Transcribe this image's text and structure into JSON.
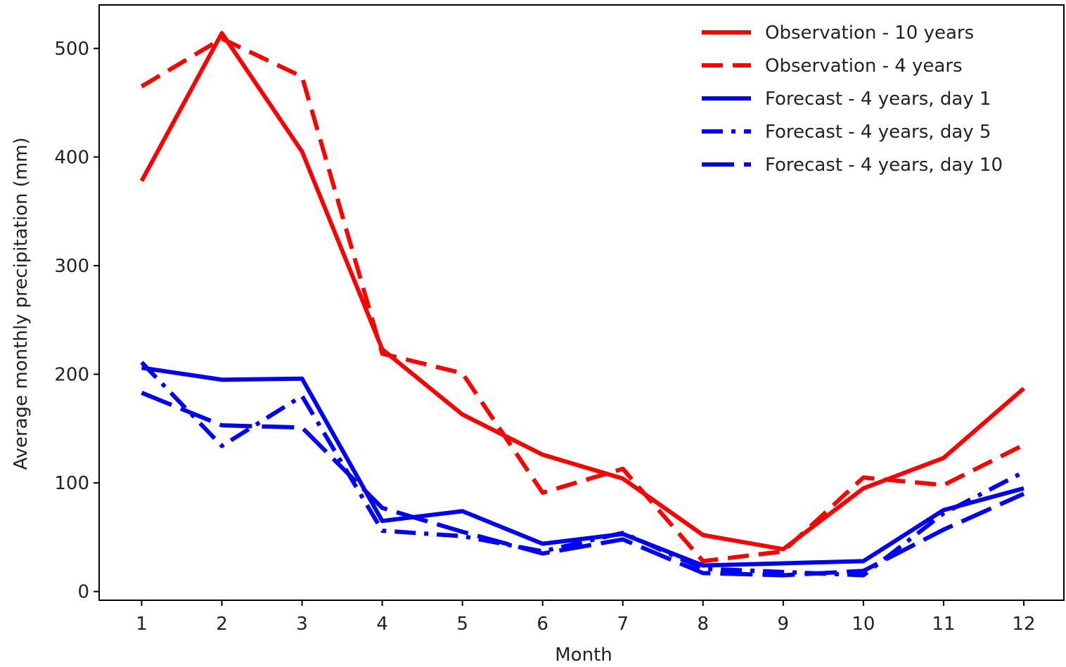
{
  "chart_data": {
    "type": "line",
    "title": "",
    "xlabel": "Month",
    "ylabel": "Average monthly precipitation (mm)",
    "x": [
      1,
      2,
      3,
      4,
      5,
      6,
      7,
      8,
      9,
      10,
      11,
      12
    ],
    "x_ticks": [
      "1",
      "2",
      "3",
      "4",
      "5",
      "6",
      "7",
      "8",
      "9",
      "10",
      "11",
      "12"
    ],
    "xlim": [
      0.47,
      12.5
    ],
    "ylim": [
      -8,
      540
    ],
    "y_ticks": [
      0,
      100,
      200,
      300,
      400,
      500
    ],
    "grid": false,
    "legend_position": "top-right",
    "series": [
      {
        "name": "Observation - 10 years",
        "color": "#ff0000",
        "line_style": "solid",
        "values": [
          378,
          514,
          405,
          223,
          163,
          126,
          104,
          52,
          39,
          95,
          123,
          187
        ]
      },
      {
        "name": "Observation - 4 years",
        "color": "#ff0000",
        "line_style": "dashed",
        "values": [
          465,
          509,
          474,
          219,
          201,
          91,
          113,
          28,
          37,
          105,
          98,
          135
        ]
      },
      {
        "name": "Forecast - 4 years, day 1",
        "color": "#0000ff",
        "line_style": "solid",
        "values": [
          206,
          195,
          196,
          65,
          74,
          44,
          53,
          24,
          26,
          28,
          75,
          95
        ]
      },
      {
        "name": "Forecast - 4 years, day 5",
        "color": "#0000ff",
        "line_style": "dashdot",
        "values": [
          211,
          134,
          180,
          56,
          51,
          37,
          54,
          21,
          18,
          15,
          72,
          110
        ]
      },
      {
        "name": "Forecast - 4 years, day 10",
        "color": "#0000ff",
        "line_style": "longdash",
        "values": [
          183,
          153,
          151,
          77,
          55,
          35,
          48,
          17,
          15,
          19,
          57,
          90
        ]
      }
    ]
  }
}
